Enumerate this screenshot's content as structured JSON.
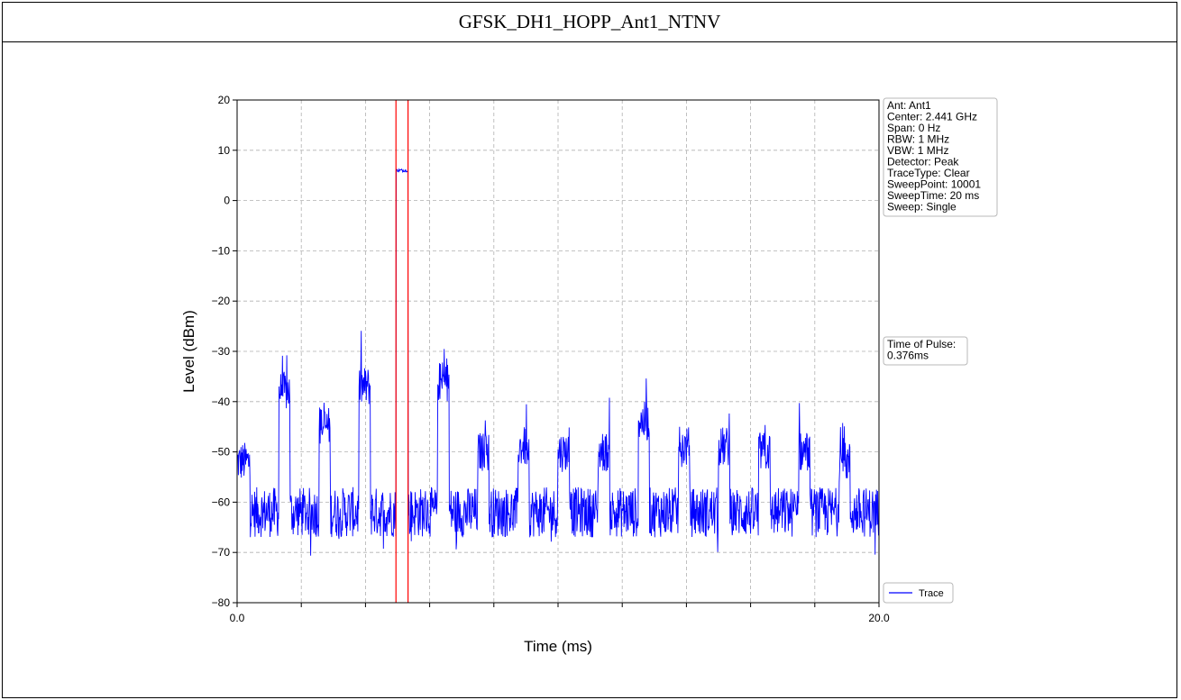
{
  "page": {
    "title": "GFSK_DH1_HOPP_Ant1_NTNV"
  },
  "chart_data": {
    "type": "line",
    "title": "GFSK_DH1_HOPP_Ant1_NTNV",
    "xlabel": "Time (ms)",
    "ylabel": "Level (dBm)",
    "xlim": [
      0.0,
      20.0
    ],
    "ylim": [
      -80,
      20
    ],
    "x_ticks": [
      0,
      2,
      4,
      6,
      8,
      10,
      12,
      14,
      16,
      18,
      20
    ],
    "x_tick_labels": [
      "0.0",
      "",
      "",
      "",
      "",
      "",
      "",
      "",
      "",
      "",
      "20.0"
    ],
    "y_ticks": [
      20,
      10,
      0,
      -10,
      -20,
      -30,
      -40,
      -50,
      -60,
      -70,
      -80
    ],
    "y_tick_labels": [
      "20",
      "10",
      "0",
      "−10",
      "−20",
      "−30",
      "−40",
      "−50",
      "−60",
      "−70",
      "−80"
    ],
    "grid": true,
    "series": [
      {
        "name": "Trace",
        "color": "#0000ff",
        "noise_floor_range": [
          -67,
          -57
        ],
        "segments": [
          {
            "x0": 0.0,
            "x1": 0.4,
            "level": -52
          },
          {
            "x0": 1.3,
            "x1": 1.65,
            "level": -38
          },
          {
            "x0": 2.55,
            "x1": 2.9,
            "level": -45
          },
          {
            "x0": 3.8,
            "x1": 4.15,
            "level": -37
          },
          {
            "x0": 4.95,
            "x1": 5.33,
            "level": 6
          },
          {
            "x0": 6.25,
            "x1": 6.6,
            "level": -36
          },
          {
            "x0": 7.5,
            "x1": 7.85,
            "level": -50
          },
          {
            "x0": 8.75,
            "x1": 9.1,
            "level": -49
          },
          {
            "x0": 10.0,
            "x1": 10.35,
            "level": -50
          },
          {
            "x0": 11.25,
            "x1": 11.6,
            "level": -50
          },
          {
            "x0": 12.5,
            "x1": 12.85,
            "level": -44
          },
          {
            "x0": 13.75,
            "x1": 14.1,
            "level": -49
          },
          {
            "x0": 15.0,
            "x1": 15.35,
            "level": -49
          },
          {
            "x0": 16.25,
            "x1": 16.6,
            "level": -50
          },
          {
            "x0": 17.5,
            "x1": 17.85,
            "level": -50
          },
          {
            "x0": 18.75,
            "x1": 19.1,
            "level": -52
          }
        ]
      }
    ],
    "markers": [
      {
        "x": 4.95,
        "color": "#ff0000"
      },
      {
        "x": 5.326,
        "color": "#ff0000"
      }
    ],
    "info_box": {
      "lines": [
        "Ant: Ant1",
        "Center: 2.441 GHz",
        "Span: 0 Hz",
        "RBW: 1 MHz",
        "VBW: 1 MHz",
        "Detector: Peak",
        "TraceType: Clear",
        "SweepPoint: 10001",
        "SweepTime: 20 ms",
        "Sweep: Single"
      ]
    },
    "pulse_box": {
      "lines": [
        "Time of Pulse:",
        " 0.376ms"
      ]
    },
    "legend": {
      "position": "bottom-right-outside",
      "entries": [
        "Trace"
      ]
    }
  }
}
